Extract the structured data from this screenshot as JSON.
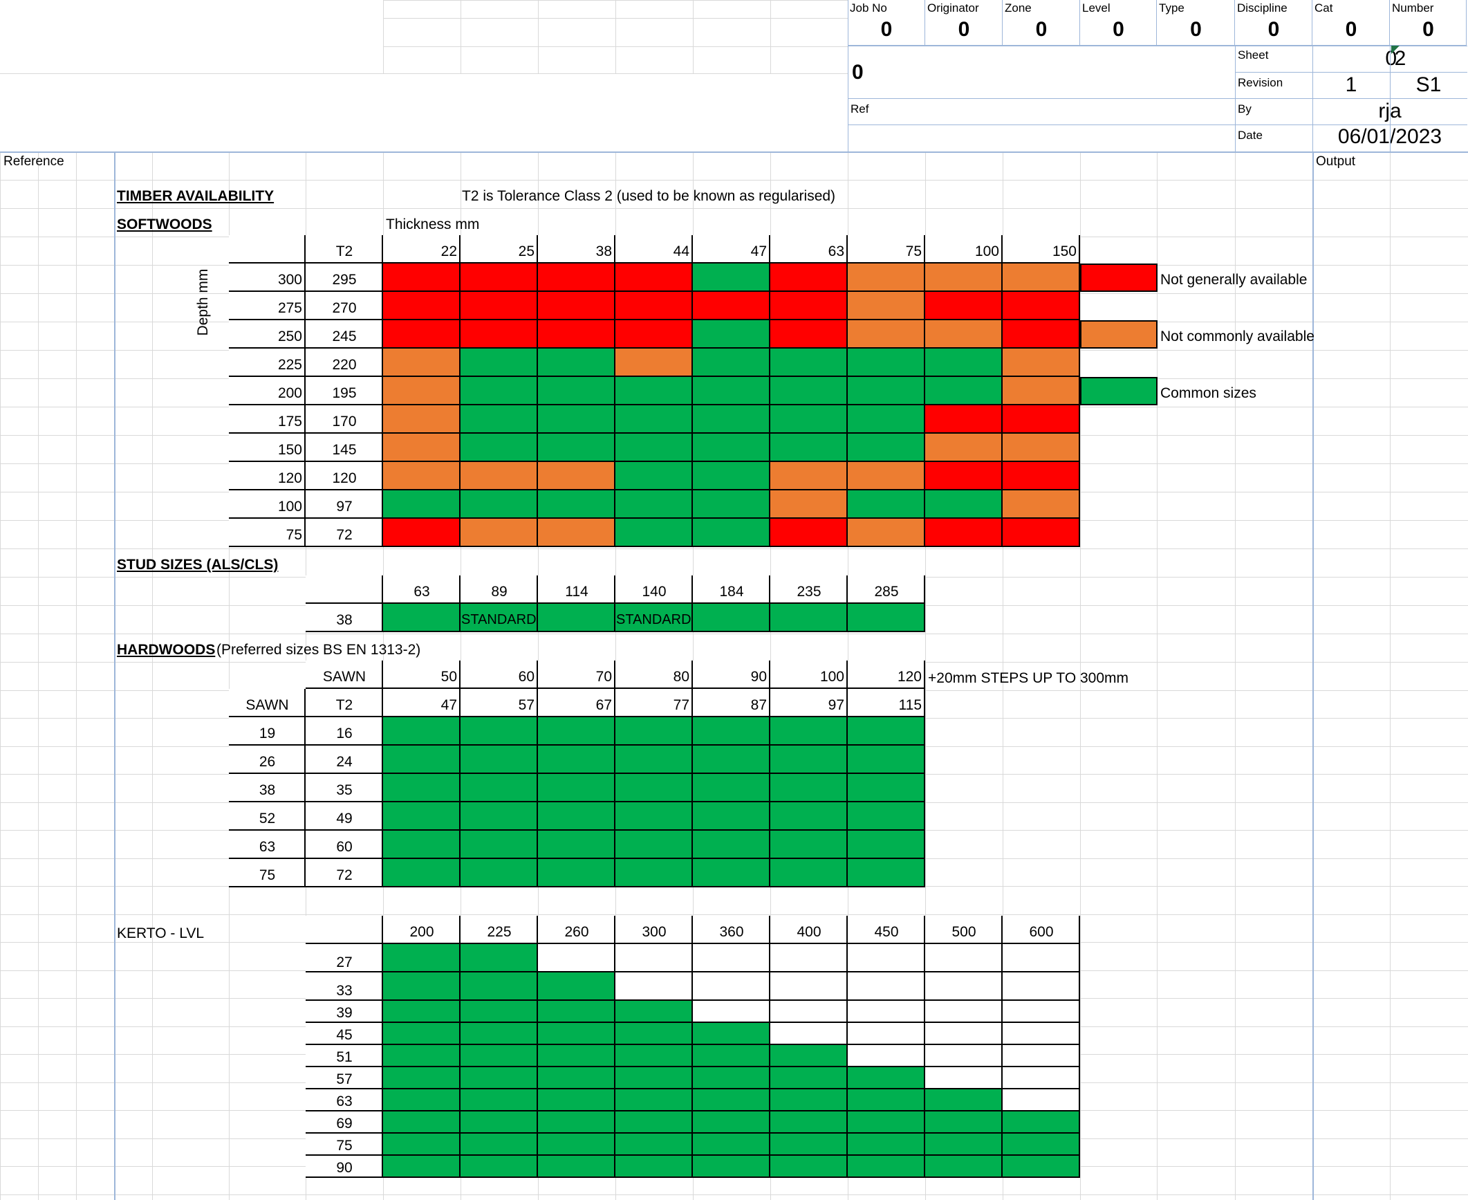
{
  "title_block": {
    "fields": [
      {
        "label": "Job No",
        "value": "0"
      },
      {
        "label": "Originator",
        "value": "0"
      },
      {
        "label": "Zone",
        "value": "0"
      },
      {
        "label": "Level",
        "value": "0"
      },
      {
        "label": "Type",
        "value": "0"
      },
      {
        "label": "Discipline",
        "value": "0"
      },
      {
        "label": "Cat",
        "value": "0"
      },
      {
        "label": "Number",
        "value": "0"
      }
    ],
    "project_value": "0",
    "sheet_label": "Sheet",
    "sheet_no": "0",
    "sheet_of": "2",
    "revision_label": "Revision",
    "revision_no": "1",
    "revision_code": "S1",
    "ref_label": "Ref",
    "by_label": "By",
    "by_value": "rja",
    "date_label": "Date",
    "date_value": "06/01/2023"
  },
  "columns": {
    "reference": "Reference",
    "output": "Output"
  },
  "heading": {
    "title": "TIMBER AVAILABILITY",
    "note": "T2 is Tolerance Class 2 (used to be known as regularised)"
  },
  "softwoods": {
    "title": "SOFTWOODS",
    "thickness_label": "Thickness mm",
    "depth_label": "Depth mm",
    "t2_header": "T2",
    "thicknesses": [
      "22",
      "25",
      "38",
      "44",
      "47",
      "63",
      "75",
      "100",
      "150"
    ],
    "rows": [
      {
        "depth": "300",
        "t2": "295",
        "cells": [
          "R",
          "R",
          "R",
          "R",
          "G",
          "R",
          "O",
          "O",
          "O"
        ]
      },
      {
        "depth": "275",
        "t2": "270",
        "cells": [
          "R",
          "R",
          "R",
          "R",
          "R",
          "R",
          "O",
          "R",
          "R"
        ]
      },
      {
        "depth": "250",
        "t2": "245",
        "cells": [
          "R",
          "R",
          "R",
          "R",
          "G",
          "R",
          "O",
          "O",
          "R"
        ]
      },
      {
        "depth": "225",
        "t2": "220",
        "cells": [
          "O",
          "G",
          "G",
          "O",
          "G",
          "G",
          "G",
          "G",
          "O"
        ]
      },
      {
        "depth": "200",
        "t2": "195",
        "cells": [
          "O",
          "G",
          "G",
          "G",
          "G",
          "G",
          "G",
          "G",
          "O"
        ]
      },
      {
        "depth": "175",
        "t2": "170",
        "cells": [
          "O",
          "G",
          "G",
          "G",
          "G",
          "G",
          "G",
          "R",
          "R"
        ]
      },
      {
        "depth": "150",
        "t2": "145",
        "cells": [
          "O",
          "G",
          "G",
          "G",
          "G",
          "G",
          "G",
          "O",
          "O"
        ]
      },
      {
        "depth": "120",
        "t2": "120",
        "cells": [
          "O",
          "O",
          "O",
          "G",
          "G",
          "O",
          "O",
          "R",
          "R"
        ]
      },
      {
        "depth": "100",
        "t2": "97",
        "cells": [
          "G",
          "G",
          "G",
          "G",
          "G",
          "O",
          "G",
          "G",
          "O"
        ]
      },
      {
        "depth": "75",
        "t2": "72",
        "cells": [
          "R",
          "O",
          "O",
          "G",
          "G",
          "R",
          "O",
          "R",
          "R"
        ]
      }
    ],
    "legend": [
      {
        "code": "R",
        "text": "Not generally available"
      },
      {
        "code": "O",
        "text": "Not commonly available"
      },
      {
        "code": "G",
        "text": "Common sizes"
      }
    ]
  },
  "stud": {
    "title": "STUD SIZES (ALS/CLS)",
    "widths": [
      "63",
      "89",
      "114",
      "140",
      "184",
      "235",
      "285"
    ],
    "thickness": "38",
    "labels": [
      "",
      "STANDARD",
      "",
      "STANDARD",
      "",
      "",
      ""
    ]
  },
  "hardwoods": {
    "title": "HARDWOODS",
    "subtitle": "(Preferred sizes BS EN 1313-2)",
    "sawn_header": "SAWN",
    "t2_header": "T2",
    "sawn_widths": [
      "50",
      "60",
      "70",
      "80",
      "90",
      "100",
      "120"
    ],
    "t2_widths": [
      "47",
      "57",
      "67",
      "77",
      "87",
      "97",
      "115"
    ],
    "steps_note": "+20mm STEPS UP TO 300mm",
    "rows": [
      {
        "sawn": "19",
        "t2": "16"
      },
      {
        "sawn": "26",
        "t2": "24"
      },
      {
        "sawn": "38",
        "t2": "35"
      },
      {
        "sawn": "52",
        "t2": "49"
      },
      {
        "sawn": "63",
        "t2": "60"
      },
      {
        "sawn": "75",
        "t2": "72"
      }
    ]
  },
  "kerto": {
    "title": "KERTO - LVL",
    "depths": [
      "200",
      "225",
      "260",
      "300",
      "360",
      "400",
      "450",
      "500",
      "600"
    ],
    "rows": [
      {
        "t": "27",
        "avail": 2
      },
      {
        "t": "33",
        "avail": 3
      },
      {
        "t": "39",
        "avail": 4
      },
      {
        "t": "45",
        "avail": 5
      },
      {
        "t": "51",
        "avail": 6
      },
      {
        "t": "57",
        "avail": 7
      },
      {
        "t": "63",
        "avail": 8
      },
      {
        "t": "69",
        "avail": 9
      },
      {
        "t": "75",
        "avail": 9
      },
      {
        "t": "90",
        "avail": 9
      }
    ]
  },
  "colors": {
    "R": "#ff0000",
    "O": "#ed7d31",
    "G": "#00b050"
  }
}
